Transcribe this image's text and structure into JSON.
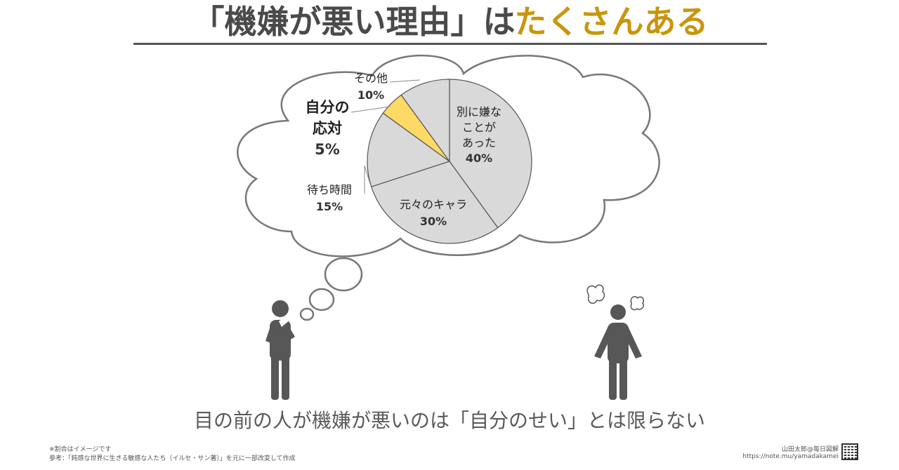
{
  "title": {
    "main": "「機嫌が悪い理由」は",
    "accent": "たくさんある",
    "colors": {
      "main": "#4a4a4a",
      "accent": "#c8960e"
    }
  },
  "chart_data": {
    "type": "pie",
    "start": "top",
    "direction": "clockwise",
    "slices": [
      {
        "label_lines": [
          "別に嫌な",
          "ことが",
          "あった"
        ],
        "value": 40,
        "value_text": "40%",
        "color": "#d9d9d9"
      },
      {
        "label_lines": [
          "元々のキャラ"
        ],
        "value": 30,
        "value_text": "30%",
        "color": "#d9d9d9"
      },
      {
        "label_lines": [
          "待ち時間"
        ],
        "value": 15,
        "value_text": "15%",
        "color": "#d9d9d9"
      },
      {
        "label_lines": [
          "自分の",
          "応対"
        ],
        "value": 5,
        "value_text": "5%",
        "color": "#ffd966",
        "highlight": true
      },
      {
        "label_lines": [
          "その他"
        ],
        "value": 10,
        "value_text": "10%",
        "color": "#d9d9d9"
      }
    ]
  },
  "caption": "目の前の人が機嫌が悪いのは「自分のせい」とは限らない",
  "footer": {
    "note1": "※割合はイメージです",
    "note2": "参考：「鈍感な世界に生きる敏感な人たち（イルセ・サン著）」を元に一部改変して作成",
    "author": "山田太郎@毎日図解",
    "url": "https://note.mu/yamadakamei"
  },
  "icons": [
    "thinking-person-icon",
    "angry-person-icon",
    "steam-puff-icon",
    "qr-code-icon"
  ]
}
